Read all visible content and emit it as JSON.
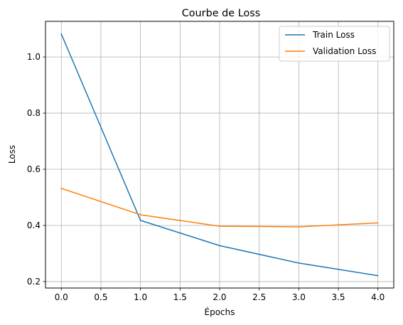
{
  "chart_data": {
    "type": "line",
    "title": "Courbe de Loss",
    "xlabel": "Épochs",
    "ylabel": "Loss",
    "x": [
      0,
      1,
      2,
      3,
      4
    ],
    "series": [
      {
        "name": "Train Loss",
        "color": "#1f77b4",
        "values": [
          1.082,
          0.418,
          0.328,
          0.266,
          0.221
        ]
      },
      {
        "name": "Validation Loss",
        "color": "#ff7f0e",
        "values": [
          0.532,
          0.438,
          0.397,
          0.395,
          0.409
        ]
      }
    ],
    "xlim": [
      -0.2,
      4.2
    ],
    "ylim": [
      0.177,
      1.127
    ],
    "xticks": [
      "0.0",
      "0.5",
      "1.0",
      "1.5",
      "2.0",
      "2.5",
      "3.0",
      "3.5",
      "4.0"
    ],
    "yticks": [
      "0.2",
      "0.4",
      "0.6",
      "0.8",
      "1.0"
    ],
    "grid": true,
    "legend_position": "top-right"
  }
}
